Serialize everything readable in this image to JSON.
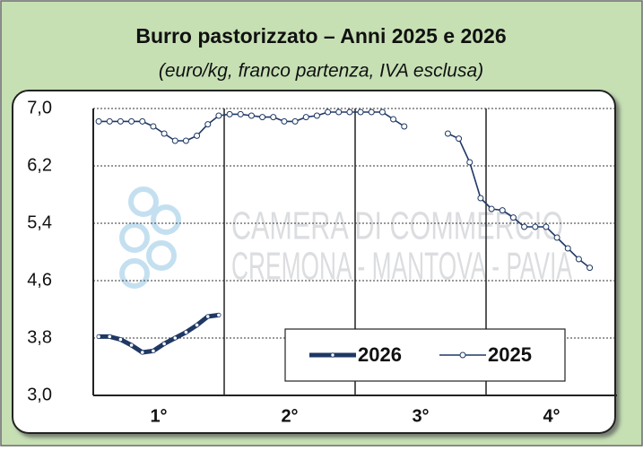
{
  "chart_data": {
    "type": "line",
    "title": "Burro pastorizzato – Anni 2025 e 2026",
    "subtitle": "(euro/kg, franco partenza, IVA esclusa)",
    "watermark": [
      "CAMERA DI COMMERCIO",
      "CREMONA - MANTOVA - PAVIA"
    ],
    "categories": [
      null,
      null,
      null,
      null,
      null,
      null,
      "1°",
      null,
      null,
      null,
      null,
      null,
      null,
      null,
      null,
      null,
      null,
      null,
      "2°",
      null,
      null,
      null,
      null,
      null,
      null,
      null,
      null,
      null,
      null,
      null,
      "3°",
      null,
      null,
      null,
      null,
      null,
      null,
      null,
      null,
      null,
      null,
      null,
      "4°",
      null,
      null,
      null,
      null,
      null
    ],
    "series": [
      {
        "name": "2026",
        "color": "#1f3864",
        "values": [
          3.82,
          3.82,
          3.78,
          3.7,
          3.6,
          3.62,
          3.72,
          3.8,
          3.88,
          3.98,
          4.1,
          4.12,
          null,
          null,
          null,
          null,
          null,
          null,
          null,
          null,
          null,
          null,
          null,
          null,
          null,
          null,
          null,
          null,
          null,
          null,
          null,
          null,
          null,
          null,
          null,
          null,
          null,
          null,
          null,
          null,
          null,
          null,
          null,
          null,
          null,
          null,
          null,
          null
        ]
      },
      {
        "name": "2025",
        "color": "#1f3864",
        "values": [
          6.82,
          6.82,
          6.82,
          6.82,
          6.82,
          6.75,
          6.65,
          6.55,
          6.55,
          6.62,
          6.78,
          6.9,
          6.92,
          6.92,
          6.9,
          6.88,
          6.88,
          6.82,
          6.82,
          6.88,
          6.9,
          6.95,
          6.95,
          6.95,
          6.95,
          6.95,
          6.95,
          6.85,
          6.75,
          null,
          null,
          null,
          6.65,
          6.58,
          6.25,
          5.75,
          5.6,
          5.58,
          5.48,
          5.35,
          5.35,
          5.35,
          5.2,
          5.05,
          4.9,
          4.78,
          null,
          null
        ]
      }
    ],
    "ylim": [
      3.0,
      7.0
    ],
    "yticks": [
      {
        "value": 3.0,
        "label": "3,0"
      },
      {
        "value": 3.8,
        "label": "3,8"
      },
      {
        "value": 4.6,
        "label": "4,6"
      },
      {
        "value": 5.4,
        "label": "5,4"
      },
      {
        "value": 6.2,
        "label": "6,2"
      },
      {
        "value": 7.0,
        "label": "7,0"
      }
    ],
    "grid": true,
    "legend": "lower right"
  }
}
